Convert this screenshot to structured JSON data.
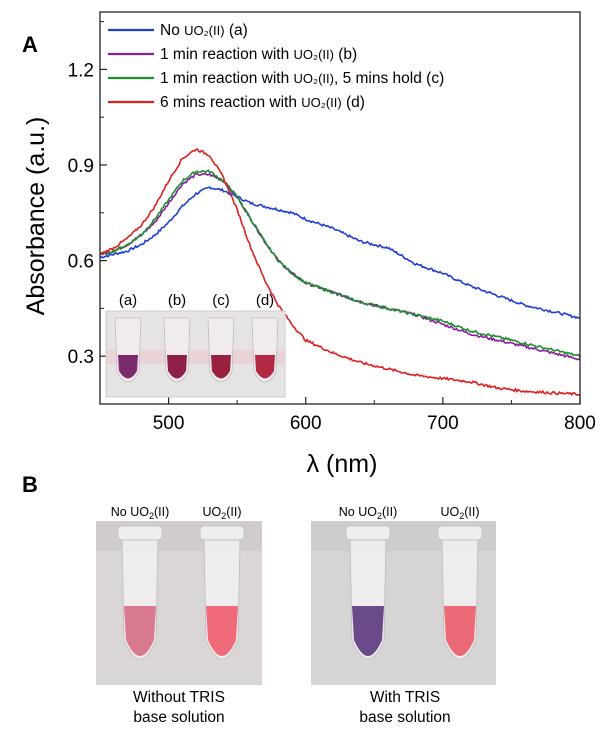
{
  "chart_data": {
    "type": "line",
    "panel_label": "A",
    "xlabel": "λ (nm)",
    "ylabel": "Absorbance (a.u.)",
    "xlim": [
      450,
      800
    ],
    "ylim": [
      0.15,
      1.38
    ],
    "x_ticks": [
      500,
      600,
      700,
      800
    ],
    "y_ticks": [
      0.3,
      0.6,
      0.9,
      1.2
    ],
    "grid": false,
    "legend_position": "top-left",
    "series": [
      {
        "name": "No UO2(II) (a)",
        "legend_parts": [
          "No ",
          "UO₂(II)",
          " (a)"
        ],
        "color": "#1f3fd6",
        "x": [
          450,
          460,
          470,
          480,
          490,
          500,
          510,
          520,
          530,
          540,
          550,
          560,
          570,
          580,
          590,
          600,
          620,
          640,
          660,
          680,
          700,
          720,
          740,
          760,
          780,
          800
        ],
        "y": [
          0.61,
          0.62,
          0.63,
          0.65,
          0.68,
          0.72,
          0.77,
          0.81,
          0.83,
          0.82,
          0.8,
          0.78,
          0.77,
          0.76,
          0.75,
          0.73,
          0.7,
          0.66,
          0.64,
          0.59,
          0.56,
          0.52,
          0.49,
          0.46,
          0.44,
          0.42
        ]
      },
      {
        "name": "1 min reaction with UO2(II) (b)",
        "legend_parts": [
          "1 min reaction with ",
          "UO₂(II)",
          " (b)"
        ],
        "color": "#8a1f9c",
        "x": [
          450,
          460,
          470,
          480,
          490,
          500,
          510,
          520,
          530,
          540,
          550,
          560,
          570,
          580,
          590,
          600,
          620,
          640,
          660,
          680,
          700,
          720,
          740,
          760,
          780,
          800
        ],
        "y": [
          0.62,
          0.63,
          0.65,
          0.68,
          0.72,
          0.78,
          0.84,
          0.87,
          0.87,
          0.85,
          0.8,
          0.73,
          0.66,
          0.6,
          0.56,
          0.53,
          0.5,
          0.47,
          0.45,
          0.43,
          0.4,
          0.37,
          0.35,
          0.33,
          0.31,
          0.29
        ]
      },
      {
        "name": "1 min reaction with UO2(II), 5 mins hold (c)",
        "legend_parts": [
          "1 min reaction with ",
          "UO₂(II)",
          ", 5 mins hold (c)"
        ],
        "color": "#1e8f2e",
        "x": [
          450,
          460,
          470,
          480,
          490,
          500,
          510,
          520,
          530,
          540,
          550,
          560,
          570,
          580,
          590,
          600,
          620,
          640,
          660,
          680,
          700,
          720,
          740,
          760,
          780,
          800
        ],
        "y": [
          0.62,
          0.63,
          0.65,
          0.68,
          0.73,
          0.79,
          0.85,
          0.88,
          0.88,
          0.85,
          0.8,
          0.73,
          0.66,
          0.6,
          0.56,
          0.53,
          0.5,
          0.47,
          0.45,
          0.43,
          0.41,
          0.38,
          0.36,
          0.34,
          0.32,
          0.3
        ]
      },
      {
        "name": "6 mins reaction with UO2(II) (d)",
        "legend_parts": [
          "6 mins reaction with ",
          "UO₂(II)",
          " (d)"
        ],
        "color": "#e02020",
        "x": [
          450,
          460,
          470,
          480,
          490,
          500,
          510,
          520,
          530,
          540,
          550,
          560,
          570,
          580,
          590,
          600,
          620,
          640,
          660,
          680,
          700,
          720,
          740,
          760,
          780,
          800
        ],
        "y": [
          0.62,
          0.64,
          0.67,
          0.71,
          0.77,
          0.85,
          0.92,
          0.95,
          0.93,
          0.86,
          0.76,
          0.64,
          0.54,
          0.46,
          0.4,
          0.35,
          0.31,
          0.28,
          0.26,
          0.24,
          0.23,
          0.22,
          0.2,
          0.19,
          0.185,
          0.18
        ]
      }
    ]
  },
  "panel_a": {
    "inset_labels": [
      "(a)",
      "(b)",
      "(c)",
      "(d)"
    ],
    "inset_vial_colors": [
      "#7a2a6a",
      "#8e1f4a",
      "#9a2040",
      "#b22a44"
    ]
  },
  "panel_b": {
    "label": "B",
    "photos": [
      {
        "labels": [
          {
            "prefix": "No ",
            "chem": "UO",
            "sub": "2",
            "suffix": "(II)"
          },
          {
            "prefix": "",
            "chem": "UO",
            "sub": "2",
            "suffix": "(II)"
          }
        ],
        "vial_colors": [
          "#d97a90",
          "#f06a7a"
        ],
        "caption_lines": [
          "Without TRIS",
          "base solution"
        ]
      },
      {
        "labels": [
          {
            "prefix": "No ",
            "chem": "UO",
            "sub": "2",
            "suffix": "(II)"
          },
          {
            "prefix": "",
            "chem": "UO",
            "sub": "2",
            "suffix": "(II)"
          }
        ],
        "vial_colors": [
          "#6a4a8a",
          "#ec6a78"
        ],
        "caption_lines": [
          "With TRIS",
          "base solution"
        ]
      }
    ]
  }
}
